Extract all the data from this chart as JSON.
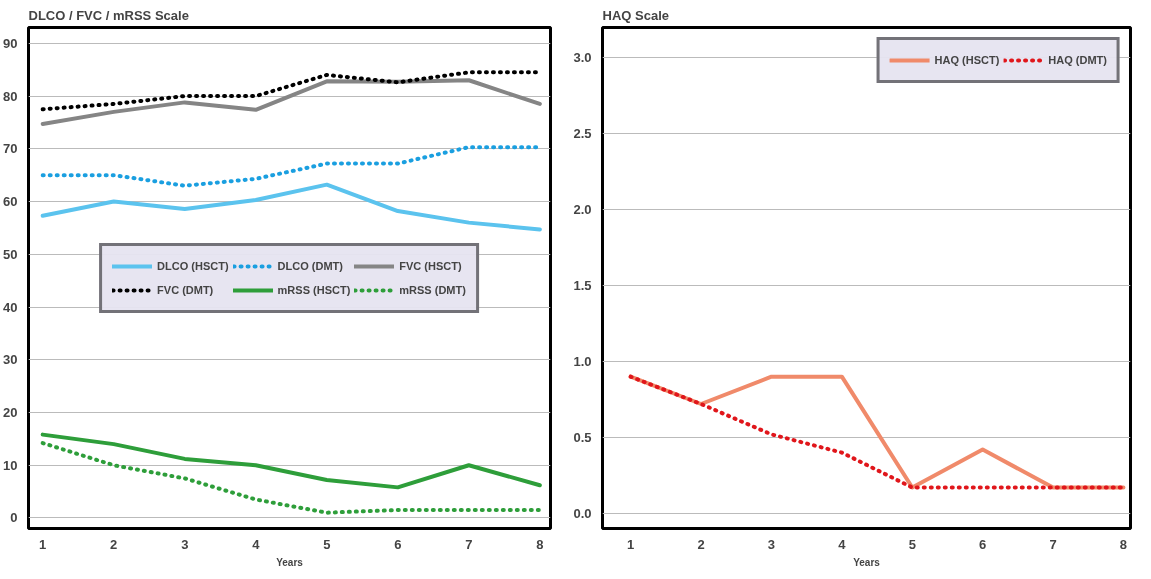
{
  "chart_data": [
    {
      "type": "line",
      "title": "DLCO / FVC / mRSS Scale",
      "xlabel": "Years",
      "x": [
        1,
        2,
        3,
        4,
        5,
        6,
        7,
        8
      ],
      "xlim": [
        0.8,
        8.15
      ],
      "xticks": [
        1,
        2,
        3,
        4,
        5,
        6,
        7,
        8
      ],
      "ylim": [
        -2,
        93
      ],
      "yticks": [
        0,
        10,
        20,
        30,
        40,
        50,
        60,
        70,
        80,
        90
      ],
      "grid": "y",
      "legend": "center",
      "series": [
        {
          "name": "DLCO (HSCT)",
          "color": "#5bc3ee",
          "line_style": "solid",
          "values": [
            57.3,
            60,
            58.6,
            60.3,
            63.2,
            58.2,
            56,
            54.7
          ]
        },
        {
          "name": "DLCO (DMT)",
          "color": "#1a9fe0",
          "line_style": "dotted",
          "values": [
            65,
            65,
            63,
            64.3,
            67.2,
            67.2,
            70.3,
            70.3
          ]
        },
        {
          "name": "FVC (HSCT)",
          "color": "#858585",
          "line_style": "solid",
          "values": [
            74.7,
            77,
            78.8,
            77.4,
            82.8,
            82.7,
            83,
            78.5
          ]
        },
        {
          "name": "FVC (DMT)",
          "color": "#000000",
          "line_style": "dotted",
          "values": [
            77.5,
            78.5,
            80,
            80,
            84,
            82.6,
            84.5,
            84.5
          ]
        },
        {
          "name": "mRSS (HSCT)",
          "color": "#2e9e3a",
          "line_style": "solid",
          "values": [
            15.8,
            14,
            11.2,
            10,
            7.2,
            5.8,
            10,
            6.2
          ]
        },
        {
          "name": "mRSS (DMT)",
          "color": "#2e9e3a",
          "line_style": "dotted",
          "values": [
            14.2,
            10,
            7.5,
            3.5,
            1,
            1.5,
            1.5,
            1.5
          ]
        }
      ]
    },
    {
      "type": "line",
      "title": "HAQ Scale",
      "xlabel": "Years",
      "x": [
        1,
        2,
        3,
        4,
        5,
        6,
        7,
        8
      ],
      "xlim": [
        0.6,
        8.1
      ],
      "xticks": [
        1,
        2,
        3,
        4,
        5,
        6,
        7,
        8
      ],
      "ylim": [
        -0.1,
        3.2
      ],
      "yticks": [
        {
          "value": 0,
          "label": "0.0"
        },
        {
          "value": 0.5,
          "label": "0.5"
        },
        {
          "value": 1,
          "label": "1.0"
        },
        {
          "value": 1.5,
          "label": "1.5"
        },
        {
          "value": 2,
          "label": "2.0"
        },
        {
          "value": 2.5,
          "label": "2.5"
        },
        {
          "value": 3,
          "label": "3.0"
        }
      ],
      "grid": "y",
      "legend": "top right",
      "series": [
        {
          "name": "HAQ (HSCT)",
          "color": "#f08a6a",
          "line_style": "solid",
          "values": [
            0.9,
            0.72,
            0.9,
            0.9,
            0.17,
            0.42,
            0.17,
            0.17
          ]
        },
        {
          "name": "HAQ (DMT)",
          "color": "#e0161b",
          "line_style": "dotted",
          "values": [
            0.9,
            0.72,
            0.52,
            0.4,
            0.17,
            0.17,
            0.17,
            0.17
          ]
        }
      ]
    }
  ]
}
